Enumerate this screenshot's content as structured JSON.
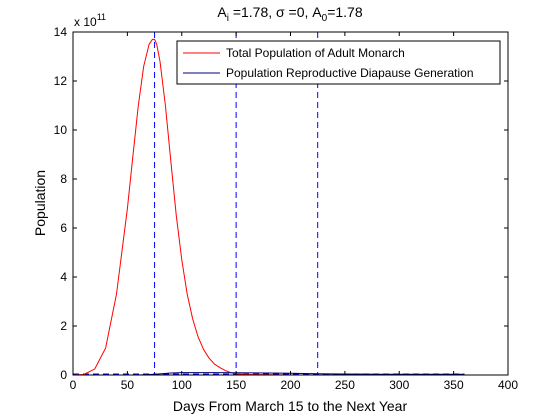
{
  "chart_data": {
    "type": "line",
    "title_parts": [
      "A",
      "i",
      " =1.78, ",
      "σ",
      " =0, A",
      "0",
      "=1.78"
    ],
    "xlabel": "Days From March 15 to the Next Year",
    "ylabel": "Population",
    "y_exponent_label": "x 10",
    "y_exponent": "11",
    "xlim": [
      0,
      400
    ],
    "ylim": [
      0,
      14
    ],
    "x_ticks": [
      0,
      50,
      100,
      150,
      200,
      250,
      300,
      350,
      400
    ],
    "y_ticks": [
      0,
      2,
      4,
      6,
      8,
      10,
      12,
      14
    ],
    "grid": false,
    "legend_position": "top-right",
    "series": [
      {
        "name": "Total Population of Adult Monarch",
        "color": "#ff0000",
        "x": [
          0,
          10,
          20,
          30,
          40,
          50,
          55,
          60,
          65,
          70,
          73,
          75,
          77,
          80,
          85,
          90,
          95,
          100,
          105,
          110,
          115,
          120,
          125,
          130,
          135,
          140,
          145,
          150,
          160,
          180,
          200,
          250,
          300,
          360
        ],
        "y": [
          0,
          0.02,
          0.25,
          1.1,
          3.3,
          6.8,
          8.9,
          11.0,
          12.6,
          13.5,
          13.7,
          13.7,
          13.5,
          12.8,
          11.0,
          8.7,
          6.5,
          4.7,
          3.3,
          2.3,
          1.55,
          1.05,
          0.7,
          0.45,
          0.3,
          0.18,
          0.1,
          0.05,
          0.02,
          0.01,
          0.0,
          0.0,
          0.0,
          0.0
        ]
      },
      {
        "name": "Population Reproductive Diapause Generation",
        "color": "#000080",
        "x": [
          0,
          60,
          75,
          90,
          100,
          130,
          150,
          180,
          200,
          225,
          250,
          300,
          360
        ],
        "y": [
          0,
          0.0,
          0.03,
          0.08,
          0.1,
          0.1,
          0.09,
          0.08,
          0.07,
          0.05,
          0.04,
          0.03,
          0.03
        ]
      }
    ],
    "vertical_lines": {
      "color": "#0000ff",
      "x": [
        75,
        150,
        225
      ]
    },
    "baseline_dashed": {
      "color": "#0000ff",
      "x": [
        0,
        360
      ],
      "y": [
        0,
        0
      ]
    }
  }
}
